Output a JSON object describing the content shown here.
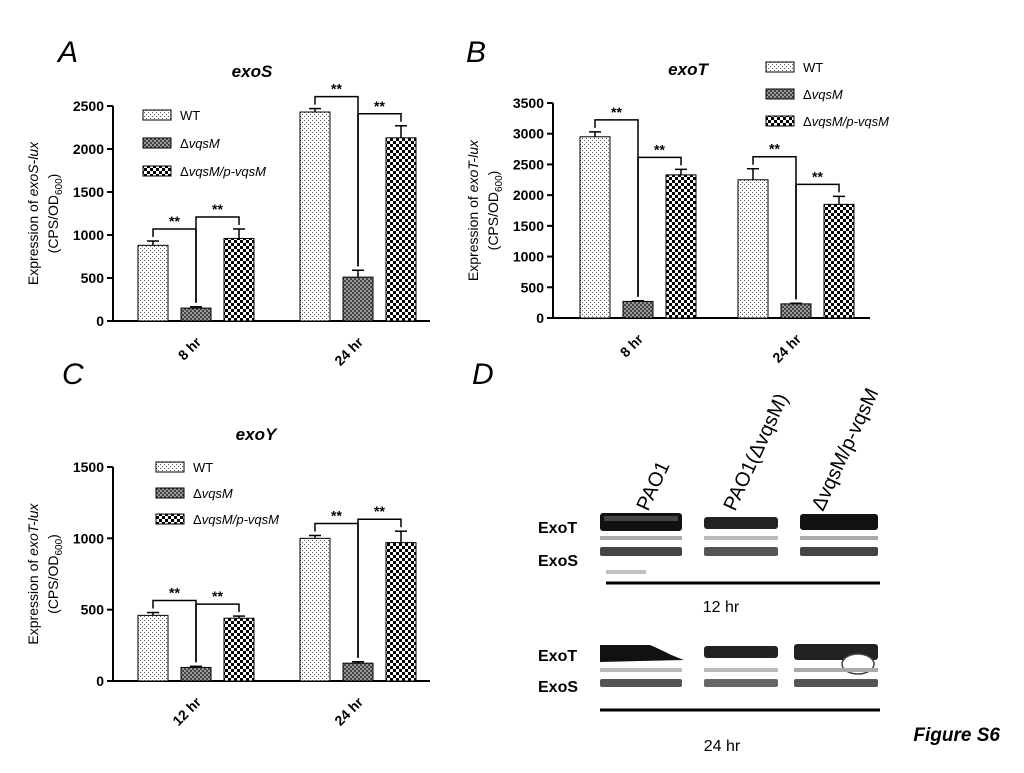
{
  "figure_label": "Figure S6",
  "panel_letters": [
    "A",
    "B",
    "C",
    "D"
  ],
  "legend": {
    "wt": "WT",
    "mut_prefix": "Δ",
    "mut_name": "vqsM",
    "comp_name": "vqsM/p-vqsM"
  },
  "significance": "**",
  "colors": {
    "axis": "#000000",
    "wt_fill": "#d9d9d9",
    "mut_fill": "#8a8a8a",
    "comp_fill": "#000000",
    "background": "#ffffff"
  },
  "chart_data": [
    {
      "id": "A",
      "type": "bar",
      "title": "exoS",
      "ylabel_prefix": "Expression of ",
      "ylabel_gene": "exoS-lux",
      "ylabel_unit_main": "(CPS/OD",
      "ylabel_unit_sub": "600",
      "ylabel_unit_end": ")",
      "ylim": [
        0,
        2500
      ],
      "yticks": [
        "0",
        "500",
        "1000",
        "1500",
        "2000",
        "2500"
      ],
      "categories": [
        "8 hr",
        "24 hr"
      ],
      "series": [
        {
          "name": "WT",
          "values": [
            880,
            2430
          ],
          "errors": [
            50,
            40
          ]
        },
        {
          "name": "ΔvqsM",
          "values": [
            150,
            510
          ],
          "errors": [
            15,
            80
          ]
        },
        {
          "name": "ΔvqsM/p-vqsM",
          "values": [
            960,
            2130
          ],
          "errors": [
            110,
            140
          ]
        }
      ],
      "legend_position": "top-center"
    },
    {
      "id": "B",
      "type": "bar",
      "title": "exoT",
      "ylabel_prefix": "Expression of ",
      "ylabel_gene": "exoT-lux",
      "ylabel_unit_main": "(CPS/OD",
      "ylabel_unit_sub": "600",
      "ylabel_unit_end": ")",
      "ylim": [
        0,
        3500
      ],
      "yticks": [
        "0",
        "500",
        "1000",
        "1500",
        "2000",
        "2500",
        "3000",
        "3500"
      ],
      "categories": [
        "8 hr",
        "24 hr"
      ],
      "series": [
        {
          "name": "WT",
          "values": [
            2950,
            2250
          ],
          "errors": [
            80,
            180
          ]
        },
        {
          "name": "ΔvqsM",
          "values": [
            270,
            230
          ],
          "errors": [
            10,
            10
          ]
        },
        {
          "name": "ΔvqsM/p-vqsM",
          "values": [
            2330,
            1850
          ],
          "errors": [
            90,
            130
          ]
        }
      ],
      "legend_position": "top-right"
    },
    {
      "id": "C",
      "type": "bar",
      "title": "exoY",
      "ylabel_prefix": "Expression of ",
      "ylabel_gene": "exoT-lux",
      "ylabel_unit_main": "(CPS/OD",
      "ylabel_unit_sub": "600",
      "ylabel_unit_end": ")",
      "ylim": [
        0,
        1500
      ],
      "yticks": [
        "0",
        "500",
        "1000",
        "1500"
      ],
      "categories": [
        "12 hr",
        "24 hr"
      ],
      "series": [
        {
          "name": "WT",
          "values": [
            460,
            1000
          ],
          "errors": [
            20,
            20
          ]
        },
        {
          "name": "ΔvqsM",
          "values": [
            95,
            125
          ],
          "errors": [
            8,
            10
          ]
        },
        {
          "name": "ΔvqsM/p-vqsM",
          "values": [
            440,
            970
          ],
          "errors": [
            15,
            80
          ]
        }
      ],
      "legend_position": "top-center"
    }
  ],
  "blot": {
    "lanes": [
      "PAO1",
      "PAO1(ΔvqsM)",
      "ΔvqsM/p-vqsM"
    ],
    "band_labels": [
      "ExoT",
      "ExoS"
    ],
    "timepoints": [
      "12 hr",
      "24 hr"
    ]
  }
}
